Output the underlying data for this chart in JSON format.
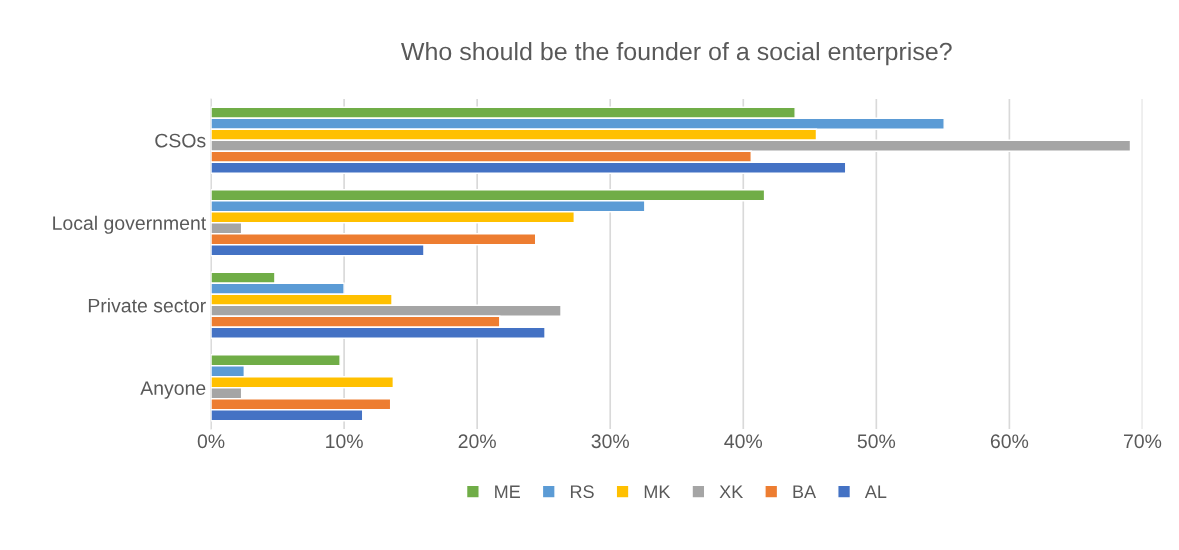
{
  "chart_data": {
    "type": "bar",
    "orientation": "horizontal",
    "title": "Who should be the founder of a social enterprise?",
    "categories": [
      "CSOs",
      "Local government",
      "Private sector",
      "Anyone"
    ],
    "series": [
      {
        "name": "ME",
        "color": "#70ad47",
        "values": [
          43.9,
          41.6,
          4.8,
          9.7
        ]
      },
      {
        "name": "RS",
        "color": "#5b9bd5",
        "values": [
          55.1,
          32.6,
          10.0,
          2.5
        ]
      },
      {
        "name": "MK",
        "color": "#ffc000",
        "values": [
          45.5,
          27.3,
          13.6,
          13.7
        ]
      },
      {
        "name": "XK",
        "color": "#a5a5a5",
        "values": [
          69.1,
          2.3,
          26.3,
          2.3
        ]
      },
      {
        "name": "BA",
        "color": "#ed7d31",
        "values": [
          40.6,
          24.4,
          21.7,
          13.5
        ]
      },
      {
        "name": "AL",
        "color": "#4472c4",
        "values": [
          47.7,
          16.0,
          25.1,
          11.4
        ]
      }
    ],
    "xlim": [
      0,
      70
    ],
    "xticks": [
      {
        "value": 0,
        "label": "0%"
      },
      {
        "value": 10,
        "label": "10%"
      },
      {
        "value": 20,
        "label": "20%"
      },
      {
        "value": 30,
        "label": "30%"
      },
      {
        "value": 40,
        "label": "40%"
      },
      {
        "value": 50,
        "label": "50%"
      },
      {
        "value": 60,
        "label": "60%"
      },
      {
        "value": 70,
        "label": "70%"
      }
    ],
    "grid": "x",
    "legend": "bottom"
  }
}
